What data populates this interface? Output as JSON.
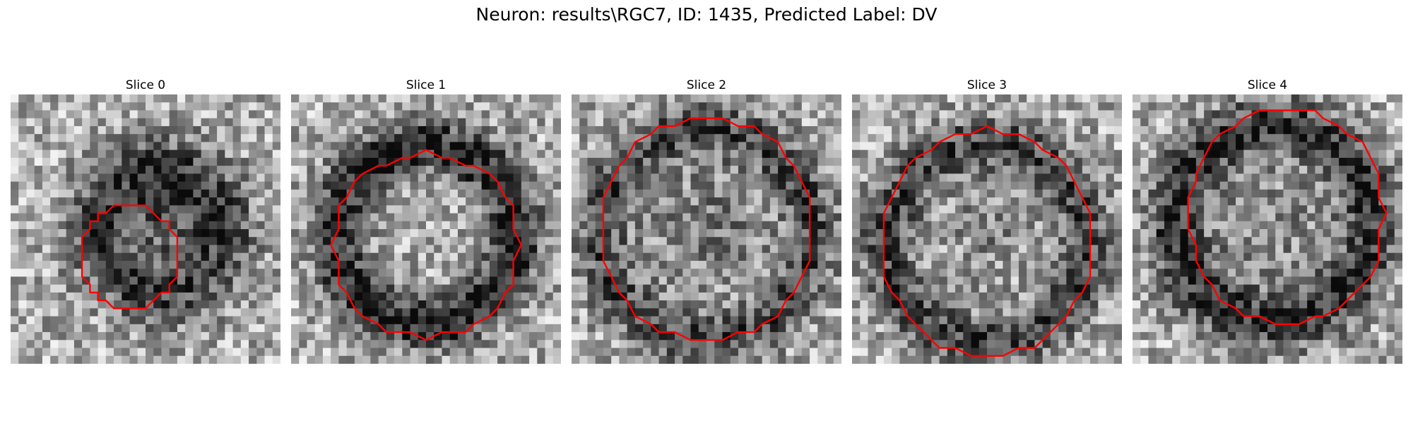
{
  "figure": {
    "title": "Neuron: results\\RGC7, ID: 1435, Predicted Label: DV"
  },
  "colors": {
    "contour": "#ff0000",
    "background": "#ffffff"
  },
  "image": {
    "colormap": "gray",
    "grid_resolution": 34
  },
  "panels": [
    {
      "title": "Slice 0",
      "contour": "small octagon-like outline, lower-left of center"
    },
    {
      "title": "Slice 1",
      "contour": "large rounded outline, centered"
    },
    {
      "title": "Slice 2",
      "contour": "large rounded outline, centered"
    },
    {
      "title": "Slice 3",
      "contour": "large rounded outline, centered"
    },
    {
      "title": "Slice 4",
      "contour": "large rounded outline, centered"
    }
  ]
}
